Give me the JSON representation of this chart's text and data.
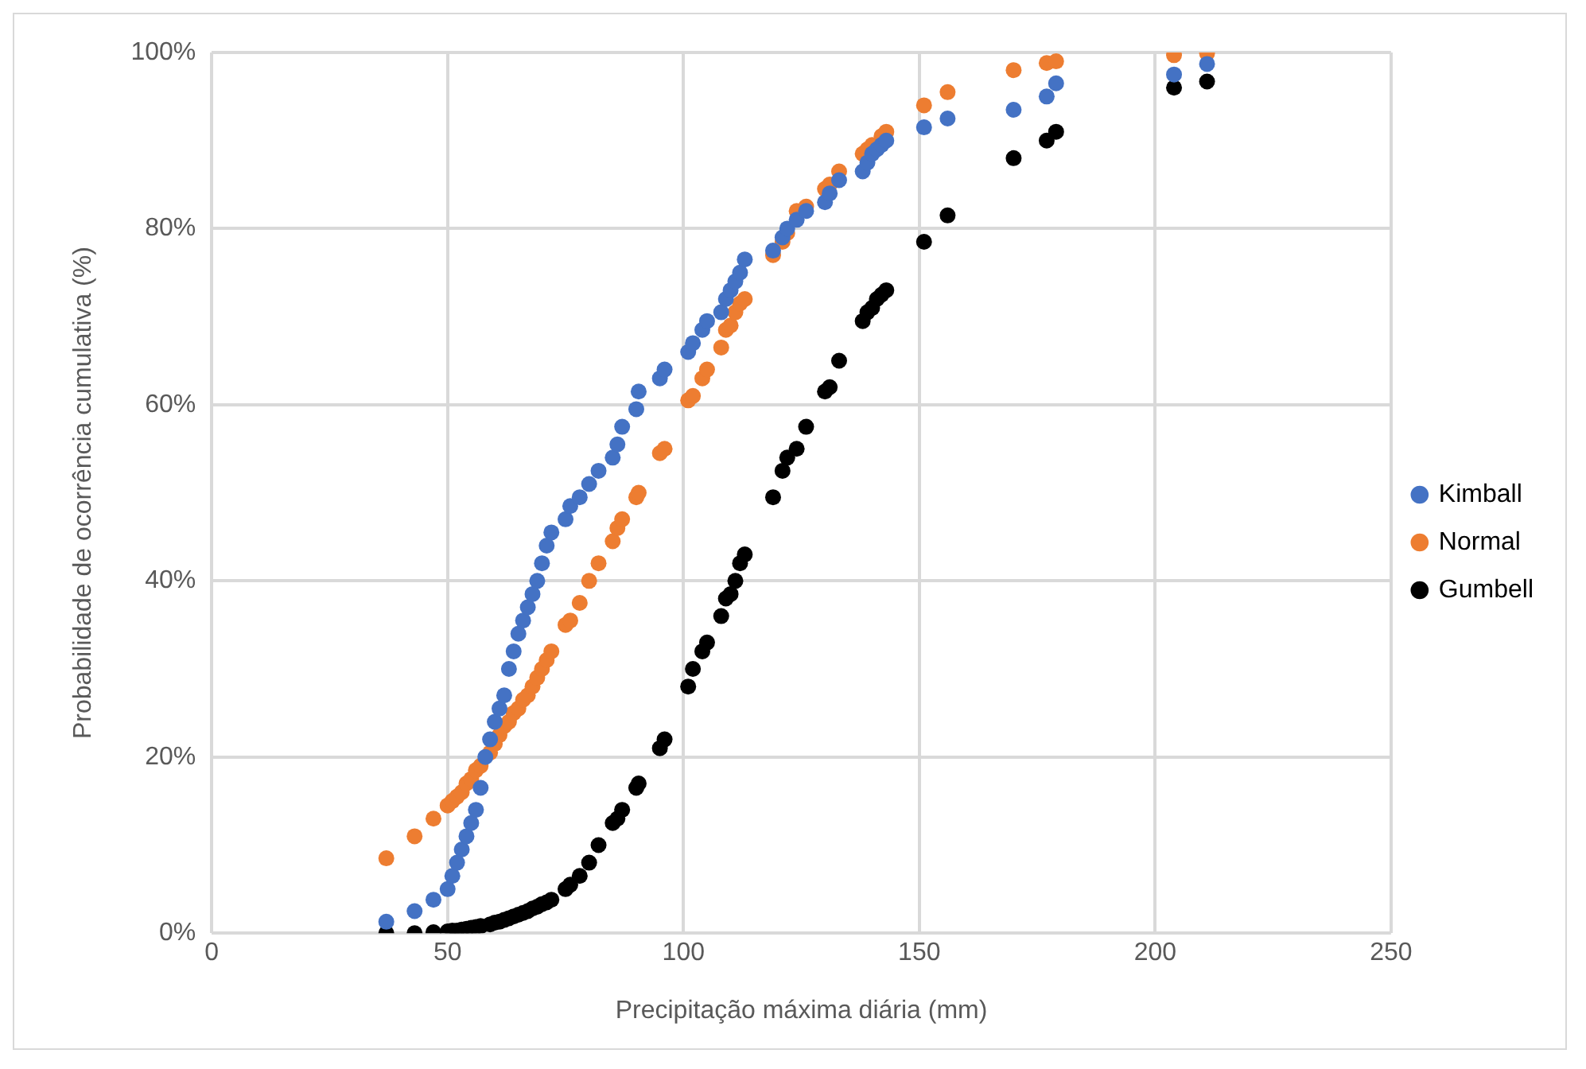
{
  "chart_data": {
    "type": "scatter",
    "xlabel": "Precipitação máxima diária (mm)",
    "ylabel": "Probabilidade de ocorrência cumulativa (%)",
    "x": [
      37,
      43,
      47,
      50,
      51,
      52,
      53,
      54,
      55,
      56,
      57,
      58,
      59,
      60,
      61,
      62,
      63,
      64,
      65,
      66,
      67,
      68,
      69,
      70,
      71,
      72,
      75,
      76,
      78,
      80,
      82,
      85,
      86,
      87,
      90,
      90.5,
      95,
      96,
      101,
      102,
      104,
      105,
      108,
      109,
      110,
      111,
      112,
      113,
      119,
      121,
      122,
      124,
      126,
      130,
      131,
      133,
      138,
      139,
      140,
      141,
      142,
      143,
      151,
      156,
      170,
      177,
      179,
      204,
      211
    ],
    "series": [
      {
        "name": "Kimball",
        "color": "#4472c4",
        "values": [
          1.3,
          2.5,
          3.8,
          5,
          6.5,
          8,
          9.5,
          11,
          12.5,
          14,
          16.5,
          20,
          22,
          24,
          25.5,
          27,
          30,
          32,
          34,
          35.5,
          37,
          38.5,
          40,
          42,
          44,
          45.5,
          47,
          48.5,
          49.5,
          51,
          52.5,
          54,
          55.5,
          57.5,
          59.5,
          61.5,
          63,
          64,
          66,
          67,
          68.5,
          69.5,
          70.5,
          72,
          73,
          74,
          75,
          76.5,
          77.5,
          79,
          80,
          81,
          82,
          83,
          84,
          85.5,
          86.5,
          87.5,
          88.5,
          89,
          89.5,
          90,
          91.5,
          92.5,
          93.5,
          95,
          96.5,
          97.5,
          98.7
        ]
      },
      {
        "name": "Normal",
        "color": "#ed7d31",
        "values": [
          8.5,
          11,
          13,
          14.5,
          15,
          15.5,
          16,
          17,
          17.5,
          18.5,
          19,
          null,
          20.5,
          21.5,
          22.5,
          23.5,
          24,
          25,
          25.5,
          26.5,
          27,
          28,
          29,
          30,
          31,
          32,
          35,
          35.5,
          37.5,
          40,
          42,
          44.5,
          46,
          47,
          49.5,
          50,
          54.5,
          55,
          60.5,
          61,
          63,
          64,
          66.5,
          68.5,
          69,
          70.5,
          71.5,
          72,
          77,
          78.5,
          79.5,
          82,
          82.5,
          84.5,
          85,
          86.5,
          88.5,
          89,
          89.5,
          null,
          90.5,
          91,
          94,
          95.5,
          98,
          98.8,
          99,
          99.7,
          99.9
        ]
      },
      {
        "name": "Gumbell",
        "color": "#000000",
        "values": [
          0,
          0,
          0.1,
          0.2,
          0.3,
          0.3,
          0.4,
          0.5,
          0.6,
          0.7,
          0.8,
          null,
          1,
          1.2,
          1.3,
          1.5,
          1.7,
          1.9,
          2.1,
          2.3,
          2.5,
          2.8,
          3,
          3.3,
          3.5,
          3.8,
          5,
          5.5,
          6.5,
          8,
          10,
          12.5,
          13,
          14,
          16.5,
          17,
          21,
          22,
          28,
          30,
          32,
          33,
          36,
          38,
          38.5,
          40,
          42,
          43,
          49.5,
          52.5,
          54,
          55,
          57.5,
          61.5,
          62,
          65,
          69.5,
          70.5,
          71,
          72,
          72.5,
          73,
          78.5,
          81.5,
          88,
          90,
          91,
          96,
          96.7
        ]
      }
    ],
    "xlim": [
      0,
      250
    ],
    "xticks": [
      0,
      50,
      100,
      150,
      200,
      250
    ],
    "ylim": [
      0,
      100
    ],
    "yticks": [
      {
        "value": 0,
        "label": "0%"
      },
      {
        "value": 20,
        "label": "20%"
      },
      {
        "value": 40,
        "label": "40%"
      },
      {
        "value": 60,
        "label": "60%"
      },
      {
        "value": 80,
        "label": "80%"
      },
      {
        "value": 100,
        "label": "100%"
      }
    ],
    "grid": true,
    "legend": "right",
    "marker": "circle"
  }
}
